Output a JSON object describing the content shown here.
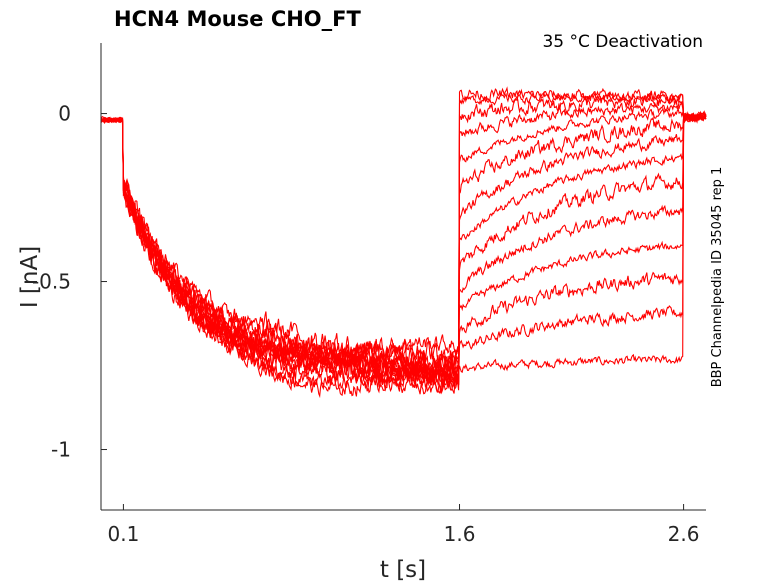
{
  "chart_data": {
    "type": "line",
    "title": "HCN4  Mouse  CHO_FT",
    "annotation": "35 °C  Deactivation",
    "side_label": "BBP Channelpedia ID 35045 rep 1",
    "xlabel": "t [s]",
    "ylabel": "I [nA]",
    "xlim": [
      0.0,
      2.7
    ],
    "ylim": [
      -1.18,
      0.21
    ],
    "x_ticks": [
      0.1,
      1.6,
      2.6
    ],
    "x_tick_labels": [
      "0.1",
      "1.6",
      "2.6"
    ],
    "y_ticks": [
      0,
      -0.5,
      -1
    ],
    "y_tick_labels": [
      "0",
      "-0.5",
      "-1"
    ],
    "grid": false,
    "line_color": "#ff0000",
    "series": [
      {
        "holding": -0.02,
        "activation_min": -0.8,
        "tail_start": -0.76,
        "tail_end": -0.73
      },
      {
        "holding": -0.02,
        "activation_min": -0.78,
        "tail_start": -0.7,
        "tail_end": -0.58
      },
      {
        "holding": -0.02,
        "activation_min": -0.76,
        "tail_start": -0.64,
        "tail_end": -0.47
      },
      {
        "holding": -0.02,
        "activation_min": -0.8,
        "tail_start": -0.58,
        "tail_end": -0.37
      },
      {
        "holding": -0.02,
        "activation_min": -0.74,
        "tail_start": -0.52,
        "tail_end": -0.26
      },
      {
        "holding": -0.02,
        "activation_min": -0.77,
        "tail_start": -0.45,
        "tail_end": -0.17
      },
      {
        "holding": -0.02,
        "activation_min": -0.72,
        "tail_start": -0.38,
        "tail_end": -0.1
      },
      {
        "holding": -0.02,
        "activation_min": -0.79,
        "tail_start": -0.3,
        "tail_end": -0.05
      },
      {
        "holding": -0.02,
        "activation_min": -0.75,
        "tail_start": -0.22,
        "tail_end": -0.01
      },
      {
        "holding": -0.02,
        "activation_min": -0.78,
        "tail_start": -0.14,
        "tail_end": 0.02
      },
      {
        "holding": -0.02,
        "activation_min": -0.73,
        "tail_start": -0.06,
        "tail_end": 0.03
      },
      {
        "holding": -0.02,
        "activation_min": -0.77,
        "tail_start": 0.0,
        "tail_end": 0.04
      },
      {
        "holding": -0.02,
        "activation_min": -0.81,
        "tail_start": 0.04,
        "tail_end": 0.05
      },
      {
        "holding": -0.02,
        "activation_min": -0.74,
        "tail_start": 0.06,
        "tail_end": 0.05
      }
    ]
  }
}
